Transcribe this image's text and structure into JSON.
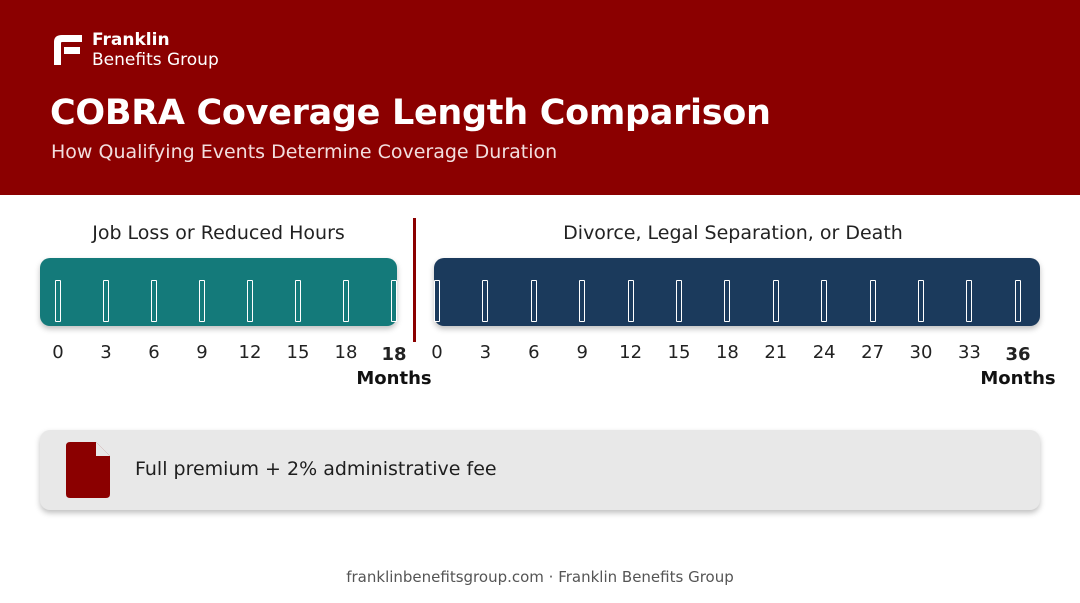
{
  "brand": {
    "name": "Franklin",
    "sub": "Benefits Group"
  },
  "header": {
    "title": "COBRA Coverage Length Comparison",
    "subtitle": "How Qualifying Events Determine Coverage Duration"
  },
  "sections": {
    "left": {
      "label": "Job Loss or Reduced Hours",
      "ticks": [
        "0",
        "3",
        "6",
        "9",
        "12",
        "15",
        "18"
      ],
      "end_value": "18",
      "end_unit": "Months"
    },
    "right": {
      "label": "Divorce, Legal Separation, or Death",
      "ticks": [
        "0",
        "3",
        "6",
        "9",
        "12",
        "15",
        "18",
        "21",
        "24",
        "27",
        "30",
        "33"
      ],
      "end_value": "36",
      "end_unit": "Months"
    }
  },
  "info": {
    "text": "Full premium + 2% administrative fee",
    "icon": "document-icon"
  },
  "footer": {
    "text": "franklinbenefitsgroup.com · Franklin Benefits Group"
  },
  "colors": {
    "header": "#8b0000",
    "teal": "#147a7a",
    "navy": "#1b3a5c",
    "box": "#e8e8e8"
  }
}
